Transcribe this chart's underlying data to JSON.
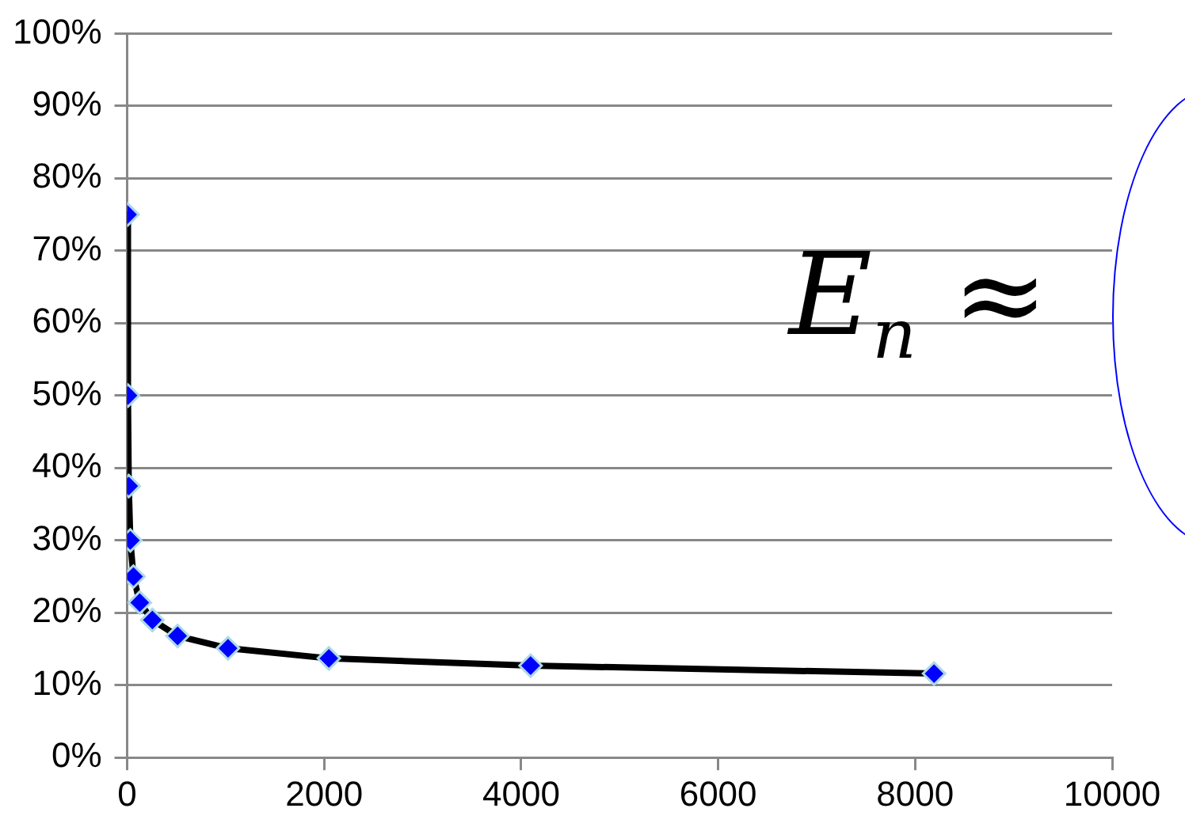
{
  "chart_data": {
    "type": "line",
    "x": [
      4,
      8,
      16,
      32,
      64,
      128,
      256,
      512,
      1024,
      2048,
      4096,
      8192
    ],
    "series": [
      {
        "color": "#0000ff",
        "values": [
          75,
          50,
          37.5,
          30,
          25,
          21.4,
          19,
          16.8,
          15.1,
          13.7,
          12.7,
          11.6
        ]
      }
    ],
    "xlim": [
      0,
      10000
    ],
    "xticks": [
      0,
      2000,
      4000,
      6000,
      8000,
      10000
    ],
    "ylim": [
      0,
      100
    ],
    "yticks": [
      {
        "value": 0,
        "label": "0%"
      },
      {
        "value": 10,
        "label": "10%"
      },
      {
        "value": 20,
        "label": "20%"
      },
      {
        "value": 30,
        "label": "30%"
      },
      {
        "value": 40,
        "label": "40%"
      },
      {
        "value": 50,
        "label": "50%"
      },
      {
        "value": 60,
        "label": "60%"
      },
      {
        "value": 70,
        "label": "70%"
      },
      {
        "value": 80,
        "label": "80%"
      },
      {
        "value": 90,
        "label": "90%"
      },
      {
        "value": 100,
        "label": "100%"
      }
    ],
    "grid": "y",
    "legend": false,
    "marker": "diamond",
    "line_style": "solid",
    "annotations": [
      "E$_{n}$ ≈"
    ]
  }
}
